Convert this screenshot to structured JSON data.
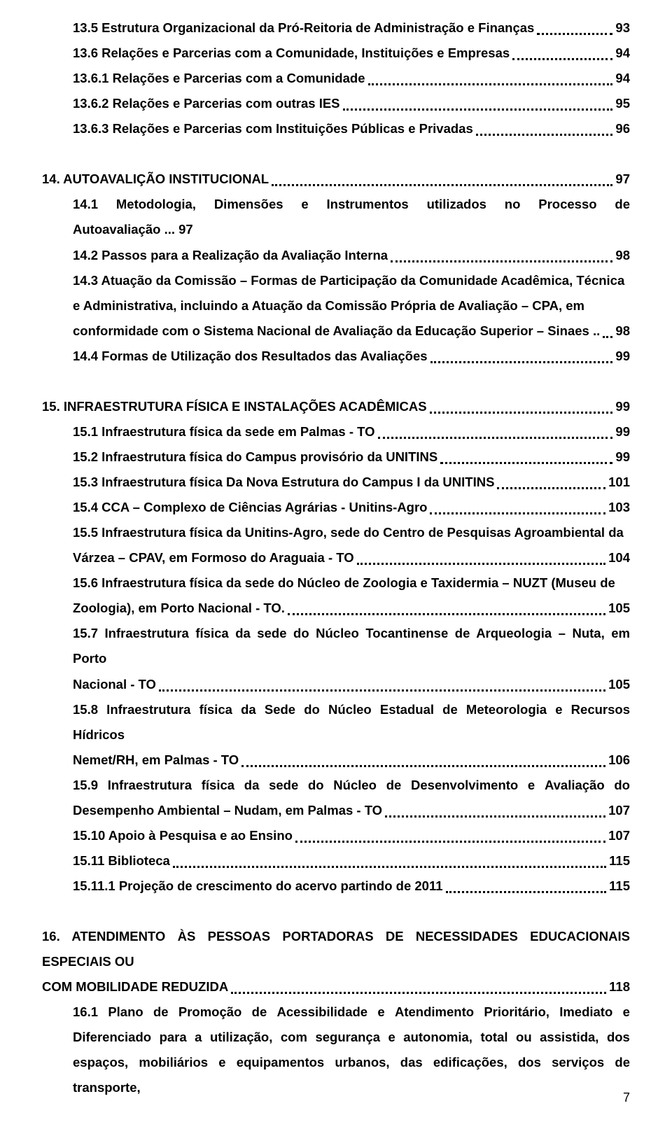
{
  "toc": {
    "block1": [
      {
        "label": "13.5 Estrutura Organizacional da Pró-Reitoria de Administração e Finanças",
        "page": "93",
        "indent": 1
      },
      {
        "label": "13.6 Relações e Parcerias com a Comunidade, Instituições e Empresas",
        "page": "94",
        "indent": 1
      },
      {
        "label": "13.6.1 Relações e Parcerias com a Comunidade",
        "page": "94",
        "indent": 1
      },
      {
        "label": "13.6.2 Relações e Parcerias com outras IES",
        "page": "95",
        "indent": 1
      },
      {
        "label": "13.6.3 Relações e Parcerias com Instituições Públicas e Privadas",
        "page": "96",
        "indent": 1
      }
    ],
    "block2": [
      {
        "label": "14. AUTOAVALIÇÃO INSTITUCIONAL",
        "page": "97",
        "indent": 0
      },
      {
        "label": "14.1 Metodologia, Dimensões e Instrumentos utilizados no Processo de Autoavaliação",
        "page": "97",
        "indent": 1,
        "tight": true
      },
      {
        "label": "14.2 Passos para a Realização da Avaliação Interna",
        "page": "98",
        "indent": 1
      },
      {
        "multiline": true,
        "indent": 1,
        "lines": [
          "14.3 Atuação da Comissão – Formas de Participação da Comunidade Acadêmica, Técnica",
          "e Administrativa, incluindo a Atuação da Comissão Própria de Avaliação – CPA, em",
          "conformidade com o Sistema Nacional de Avaliação da Educação Superior – Sinaes .."
        ],
        "page": "98"
      },
      {
        "label": "14.4 Formas de Utilização dos Resultados das Avaliações",
        "page": "99",
        "indent": 1
      }
    ],
    "block3": [
      {
        "label": "15. INFRAESTRUTURA FÍSICA E INSTALAÇÕES ACADÊMICAS",
        "page": "99",
        "indent": 0
      },
      {
        "label": "15.1 Infraestrutura física da sede em Palmas - TO",
        "page": "99",
        "indent": 1
      },
      {
        "label": "15.2 Infraestrutura física do Campus provisório da UNITINS",
        "page": "99",
        "indent": 1
      },
      {
        "label": "15.3 Infraestrutura física Da Nova Estrutura do Campus I da UNITINS",
        "page": "101",
        "indent": 1
      },
      {
        "label": "15.4 CCA – Complexo de Ciências Agrárias - Unitins-Agro",
        "page": "103",
        "indent": 1
      },
      {
        "multiline": true,
        "indent": 1,
        "lines": [
          "15.5 Infraestrutura física da Unitins-Agro, sede do Centro de Pesquisas Agroambiental da",
          "Várzea – CPAV, em Formoso do Araguaia - TO"
        ],
        "page": "104"
      },
      {
        "multiline": true,
        "indent": 1,
        "lines": [
          "15.6 Infraestrutura física da sede do Núcleo de Zoologia e Taxidermia – NUZT (Museu de",
          "Zoologia), em Porto Nacional - TO."
        ],
        "page": "105"
      },
      {
        "multiline": true,
        "indent": 1,
        "lines": [
          "15.7 Infraestrutura física da sede do Núcleo Tocantinense de Arqueologia – Nuta, em Porto",
          "Nacional - TO"
        ],
        "page": "105"
      },
      {
        "multiline": true,
        "indent": 1,
        "lines": [
          "15.8 Infraestrutura física da Sede do Núcleo Estadual de Meteorologia e Recursos Hídricos",
          "Nemet/RH, em Palmas - TO"
        ],
        "page": "106"
      },
      {
        "multiline": true,
        "indent": 1,
        "justify_words": [
          [
            "15.9",
            "Infraestrutura",
            "física",
            "da",
            "sede",
            "do",
            "Núcleo",
            "de",
            "Desenvolvimento",
            "e",
            "Avaliação",
            "do"
          ]
        ],
        "last_label": "Desempenho Ambiental – Nudam, em Palmas - TO",
        "page": "107"
      },
      {
        "label": "15.10 Apoio à Pesquisa e ao Ensino",
        "page": "107",
        "indent": 1
      },
      {
        "label": "15.11  Biblioteca",
        "page": "115",
        "indent": 1
      },
      {
        "label": "15.11.1 Projeção de crescimento do acervo partindo de 2011",
        "page": "115",
        "indent": 1
      }
    ],
    "block4": [
      {
        "multiline": true,
        "indent": 0,
        "lines": [
          "16.  ATENDIMENTO ÀS PESSOAS PORTADORAS DE NECESSIDADES EDUCACIONAIS ESPECIAIS OU",
          "COM MOBILIDADE REDUZIDA"
        ],
        "page": "118"
      },
      {
        "trailing_para": true,
        "indent": 1,
        "justify_words": [
          [
            "16.1",
            "Plano",
            "de",
            "Promoção",
            "de",
            "Acessibilidade",
            "e",
            "Atendimento",
            "Prioritário,",
            "Imediato",
            "e"
          ],
          [
            "Diferenciado",
            "para",
            "a",
            "utilização,",
            "com",
            "segurança",
            "e",
            "autonomia,",
            "total",
            "ou",
            "assistida,",
            "dos"
          ]
        ],
        "last_line": "espaços, mobiliários e equipamentos urbanos, das edificações, dos serviços de transporte,"
      }
    ]
  },
  "page_number": "7"
}
